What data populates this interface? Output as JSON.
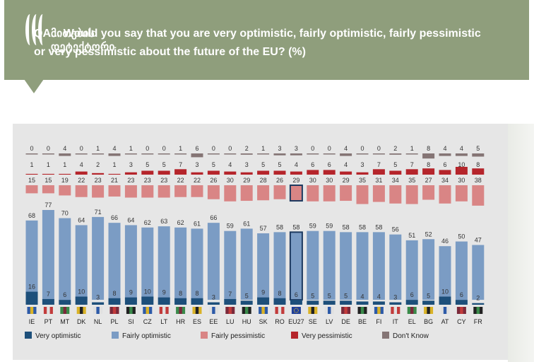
{
  "header": {
    "question": "QA... Would you say that you are very optimistic, fairly optimistic, fairly pessimistic or very pessimistic about the future of the EU? (%)",
    "logo_line1": "მითების",
    "logo_line2": "დეტექტორი"
  },
  "colors": {
    "header_bg": "#8f9e7c",
    "panel_bg": "#e6e6e6",
    "very_optimistic": "#1d4f7a",
    "fairly_optimistic": "#7b9cc4",
    "fairly_pessimistic": "#d98585",
    "very_pessimistic": "#b5252b",
    "dont_know": "#857575"
  },
  "chart_data": {
    "type": "bar",
    "categories": [
      "IE",
      "PT",
      "MT",
      "DK",
      "NL",
      "PL",
      "SI",
      "CZ",
      "LT",
      "HR",
      "ES",
      "EE",
      "LU",
      "HU",
      "SK",
      "RO",
      "EU27",
      "SE",
      "LV",
      "DE",
      "BE",
      "FI",
      "IT",
      "EL",
      "BG",
      "AT",
      "CY",
      "FR"
    ],
    "highlight": "EU27",
    "series": [
      {
        "name": "Very optimistic",
        "key": "very_optimistic",
        "values": [
          16,
          7,
          6,
          10,
          3,
          8,
          9,
          10,
          9,
          8,
          8,
          3,
          7,
          5,
          9,
          8,
          6,
          5,
          5,
          5,
          4,
          4,
          3,
          6,
          5,
          10,
          6,
          2
        ]
      },
      {
        "name": "Fairly optimistic",
        "key": "fairly_optimistic",
        "values": [
          68,
          77,
          70,
          64,
          71,
          66,
          64,
          62,
          63,
          62,
          61,
          66,
          59,
          61,
          57,
          58,
          58,
          59,
          59,
          58,
          58,
          58,
          56,
          51,
          52,
          46,
          50,
          47
        ]
      },
      {
        "name": "Fairly pessimistic",
        "key": "fairly_pessimistic",
        "values": [
          15,
          15,
          19,
          22,
          23,
          21,
          23,
          23,
          23,
          22,
          22,
          26,
          30,
          29,
          28,
          26,
          29,
          30,
          30,
          29,
          35,
          31,
          34,
          35,
          27,
          34,
          30,
          38
        ]
      },
      {
        "name": "Very pessimistic",
        "key": "very_pessimistic",
        "values": [
          1,
          1,
          1,
          4,
          2,
          1,
          3,
          5,
          5,
          7,
          3,
          5,
          4,
          3,
          5,
          5,
          4,
          6,
          6,
          4,
          3,
          7,
          5,
          7,
          8,
          6,
          10,
          8
        ]
      },
      {
        "name": "Don't Know",
        "key": "dont_know",
        "values": [
          0,
          0,
          4,
          0,
          1,
          4,
          1,
          0,
          0,
          1,
          6,
          0,
          0,
          2,
          1,
          3,
          3,
          0,
          0,
          4,
          0,
          0,
          2,
          1,
          8,
          4,
          4,
          5
        ]
      }
    ],
    "legend_position": "bottom",
    "grid": false
  }
}
